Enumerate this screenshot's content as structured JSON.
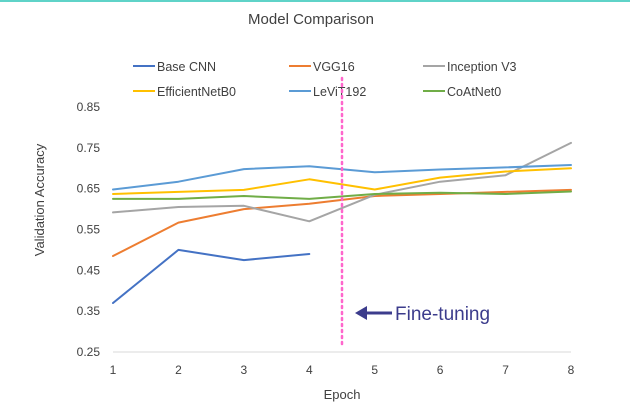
{
  "chart_data": {
    "type": "line",
    "title": "Model Comparison",
    "xlabel": "Epoch",
    "ylabel": "Validation Accuracy",
    "x": [
      1,
      2,
      3,
      4,
      5,
      6,
      7,
      8
    ],
    "xlim": [
      1,
      8
    ],
    "ylim": [
      0.25,
      0.85
    ],
    "yticks": [
      "0.25",
      "0.35",
      "0.45",
      "0.55",
      "0.65",
      "0.75",
      "0.85"
    ],
    "grid": false,
    "legend_position": "top",
    "series": [
      {
        "name": "Base CNN",
        "color": "#4472c4",
        "values": [
          0.37,
          0.5,
          0.475,
          0.49,
          null,
          null,
          null,
          null
        ]
      },
      {
        "name": "VGG16",
        "color": "#ed7d31",
        "values": [
          0.485,
          0.567,
          0.6,
          0.613,
          0.632,
          0.637,
          0.642,
          0.647
        ]
      },
      {
        "name": "Inception V3",
        "color": "#a5a5a5",
        "values": [
          0.592,
          0.605,
          0.608,
          0.57,
          0.635,
          0.667,
          0.683,
          0.762
        ]
      },
      {
        "name": "EfficientNetB0",
        "color": "#ffc000",
        "values": [
          0.637,
          0.642,
          0.647,
          0.673,
          0.648,
          0.677,
          0.692,
          0.7
        ]
      },
      {
        "name": "LeViT192",
        "color": "#5b9bd5",
        "values": [
          0.648,
          0.667,
          0.698,
          0.705,
          0.69,
          0.697,
          0.702,
          0.708
        ]
      },
      {
        "name": "CoAtNet0",
        "color": "#70ad47",
        "values": [
          0.625,
          0.625,
          0.632,
          0.625,
          0.637,
          0.64,
          0.637,
          0.643
        ]
      }
    ],
    "annotation": {
      "text": "Fine-tuning",
      "at_x": 4.5,
      "line_color": "#ff66cc",
      "arrow_color": "#3c3c8c"
    }
  }
}
